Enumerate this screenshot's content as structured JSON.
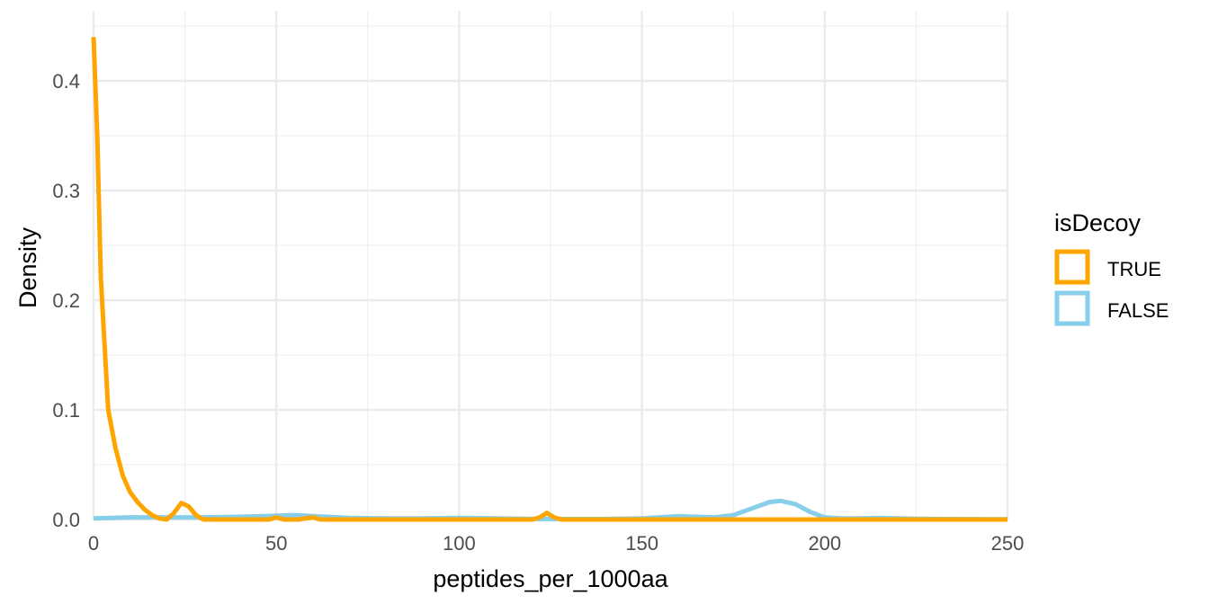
{
  "chart_data": {
    "type": "line",
    "xlabel": "peptides_per_1000aa",
    "ylabel": "Density",
    "xlim": [
      0,
      250
    ],
    "ylim": [
      0,
      0.44
    ],
    "x_ticks": [
      0,
      50,
      100,
      150,
      200,
      250
    ],
    "x_tick_labels": [
      "0",
      "50",
      "100",
      "150",
      "200",
      "250"
    ],
    "y_ticks": [
      0.0,
      0.1,
      0.2,
      0.3,
      0.4
    ],
    "y_tick_labels": [
      "0.0",
      "0.1",
      "0.2",
      "0.3",
      "0.4"
    ],
    "grid": true,
    "legend": {
      "title": "isDecoy",
      "position": "right",
      "entries": [
        "TRUE",
        "FALSE"
      ]
    },
    "series": [
      {
        "name": "TRUE",
        "color": "#FFA500",
        "x": [
          0,
          1,
          2,
          4,
          6,
          8,
          10,
          12,
          14,
          16,
          18,
          20,
          22,
          24,
          26,
          28,
          30,
          40,
          48,
          50,
          52,
          56,
          60,
          62,
          66,
          100,
          120,
          122,
          124,
          126,
          128,
          130,
          140,
          160,
          180,
          200,
          250
        ],
        "y": [
          0.44,
          0.35,
          0.22,
          0.1,
          0.065,
          0.04,
          0.025,
          0.016,
          0.009,
          0.004,
          0.001,
          0.0,
          0.006,
          0.015,
          0.012,
          0.004,
          0.0,
          0.0,
          0.0,
          0.002,
          0.0,
          0.0,
          0.002,
          0.0,
          0.0,
          0.0,
          0.0,
          0.002,
          0.006,
          0.002,
          0.0,
          0.0,
          0.0,
          0.0,
          0.0,
          0.0,
          0.0
        ]
      },
      {
        "name": "FALSE",
        "color": "#87CEEB",
        "x": [
          0,
          10,
          20,
          30,
          40,
          50,
          55,
          60,
          70,
          80,
          90,
          100,
          110,
          120,
          130,
          140,
          150,
          155,
          160,
          165,
          170,
          175,
          180,
          185,
          188,
          192,
          196,
          200,
          205,
          210,
          215,
          220,
          230,
          240,
          250
        ],
        "y": [
          0.001,
          0.002,
          0.002,
          0.002,
          0.0025,
          0.0035,
          0.004,
          0.003,
          0.0015,
          0.001,
          0.001,
          0.0015,
          0.001,
          0.0005,
          0.0005,
          0.0005,
          0.001,
          0.002,
          0.003,
          0.0025,
          0.002,
          0.004,
          0.01,
          0.016,
          0.017,
          0.014,
          0.007,
          0.002,
          0.001,
          0.001,
          0.0015,
          0.001,
          0.0005,
          0.0003,
          0.0002
        ]
      }
    ]
  }
}
